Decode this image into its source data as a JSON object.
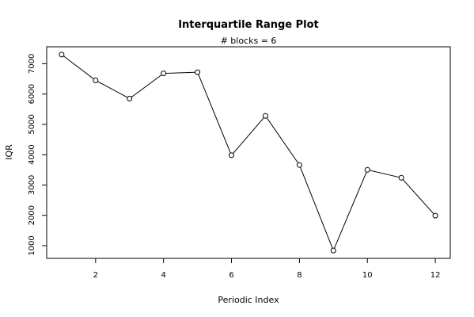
{
  "chart_data": {
    "type": "line",
    "title": "Interquartile Range Plot",
    "subtitle": "# blocks =  6",
    "xlabel": "Periodic Index",
    "ylabel": "IQR",
    "x": [
      1,
      2,
      3,
      4,
      5,
      6,
      7,
      8,
      9,
      10,
      11,
      12
    ],
    "values": [
      7300,
      6450,
      5850,
      6680,
      6720,
      3980,
      5280,
      3660,
      840,
      3500,
      3240,
      1990
    ],
    "xlim": [
      0.56,
      12.44
    ],
    "ylim": [
      581,
      7559
    ],
    "x_ticks": [
      2,
      4,
      6,
      8,
      10,
      12
    ],
    "y_ticks": [
      1000,
      2000,
      3000,
      4000,
      5000,
      6000,
      7000
    ],
    "x_tick_labels": [
      "2",
      "4",
      "6",
      "8",
      "10",
      "12"
    ],
    "y_tick_labels": [
      "1000",
      "2000",
      "3000",
      "4000",
      "5000",
      "6000",
      "7000"
    ],
    "marker": "open-circle",
    "line_color": "#000000",
    "grid": false,
    "legend": "none"
  }
}
